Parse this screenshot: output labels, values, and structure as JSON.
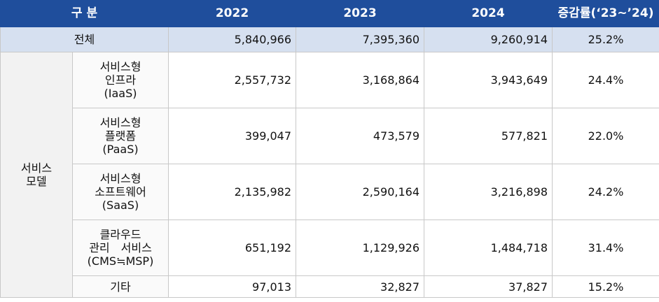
{
  "header": {
    "label": "구 분",
    "years": [
      "2022",
      "2023",
      "2024"
    ],
    "change": "증감률(‘23~’24)"
  },
  "total": {
    "label": "전체",
    "values": [
      "5,840,966",
      "7,395,360",
      "9,260,914"
    ],
    "change": "25.2%"
  },
  "group": {
    "label": [
      "서비스",
      "모델"
    ],
    "rows": [
      {
        "label": [
          "서비스형",
          "인프라",
          "(IaaS)"
        ],
        "values": [
          "2,557,732",
          "3,168,864",
          "3,943,649"
        ],
        "change": "24.4%"
      },
      {
        "label": [
          "서비스형",
          "플랫폼",
          "(PaaS)"
        ],
        "values": [
          "399,047",
          "473,579",
          "577,821"
        ],
        "change": "22.0%"
      },
      {
        "label": [
          "서비스형",
          "소프트웨어",
          "(SaaS)"
        ],
        "values": [
          "2,135,982",
          "2,590,164",
          "3,216,898"
        ],
        "change": "24.2%"
      },
      {
        "label": [
          "클라우드",
          "관리　서비스",
          "(CMS≒MSP)"
        ],
        "values": [
          "651,192",
          "1,129,926",
          "1,484,718"
        ],
        "change": "31.4%"
      },
      {
        "label": [
          "기타"
        ],
        "values": [
          "97,013",
          "32,827",
          "37,827"
        ],
        "change": "15.2%"
      }
    ]
  }
}
